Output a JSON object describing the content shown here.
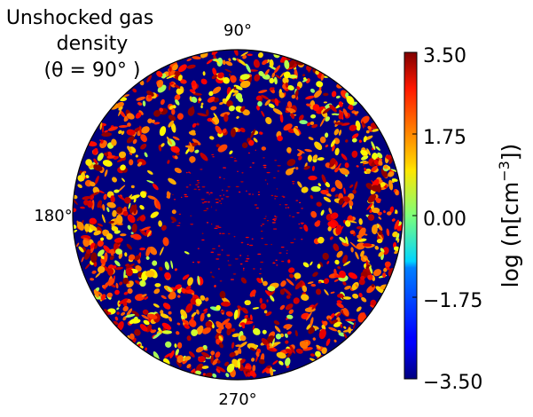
{
  "chart_data": {
    "type": "heatmap",
    "projection": "polar",
    "title_lines": [
      "Unshocked gas",
      "density",
      "(θ = 90° )"
    ],
    "angular_ticks": [
      "90°",
      "180°",
      "270°"
    ],
    "colorbar": {
      "label": "log (n[cm⁻³])",
      "label_main": "log (n[cm",
      "label_exp": "−3",
      "label_close": "])",
      "ticks": [
        "3.50",
        "1.75",
        "0.00",
        "−1.75",
        "−3.50"
      ],
      "tick_values": [
        3.5,
        1.75,
        0.0,
        -1.75,
        -3.5
      ],
      "range": [
        -3.5,
        3.5
      ],
      "colormap": "jet"
    },
    "field_summary": {
      "background_log_n": -3.5,
      "clump_log_n_range": [
        0.0,
        3.5
      ],
      "clumps_ring_inner_fraction": 0.35,
      "clumps_ring_outer_fraction": 1.0
    }
  }
}
